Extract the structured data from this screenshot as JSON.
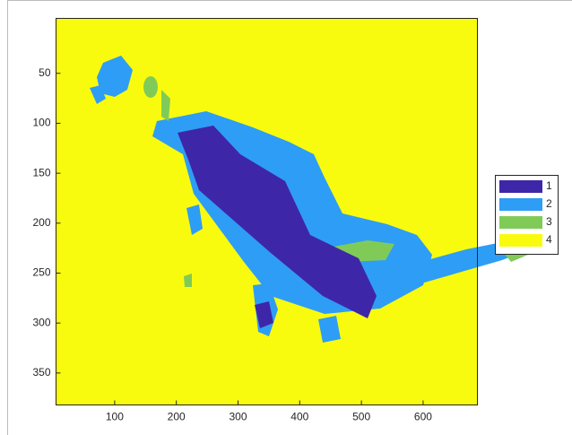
{
  "chart_data": {
    "type": "image",
    "series": [
      {
        "name": "1",
        "color": "#3e26a8"
      },
      {
        "name": "2",
        "color": "#2e9df5"
      },
      {
        "name": "3",
        "color": "#80cb58"
      },
      {
        "name": "4",
        "color": "#f9fb0e"
      }
    ],
    "xlim": [
      5,
      688
    ],
    "xticks": [
      100,
      200,
      300,
      400,
      500,
      600
    ],
    "ylim": [
      382,
      -5
    ],
    "yticks": [
      50,
      100,
      150,
      200,
      250,
      300,
      350
    ],
    "legend": "outside-right"
  }
}
